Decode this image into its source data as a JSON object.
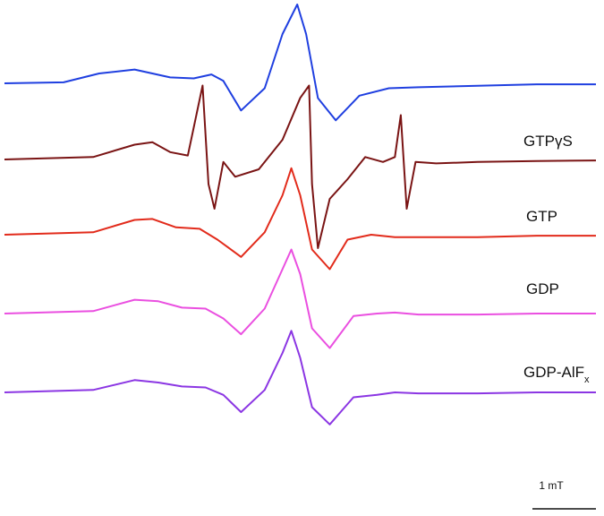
{
  "chart_data": {
    "type": "line",
    "x_range": [
      0,
      10
    ],
    "scale_bar": {
      "label": "1 mT",
      "length": 1.1
    },
    "series": [
      {
        "name": "",
        "color": "#1f3fe0",
        "points": [
          [
            0,
            0
          ],
          [
            1.0,
            0.02
          ],
          [
            1.6,
            0.2
          ],
          [
            2.2,
            0.28
          ],
          [
            2.8,
            0.12
          ],
          [
            3.2,
            0.1
          ],
          [
            3.5,
            0.18
          ],
          [
            3.7,
            0.05
          ],
          [
            4.0,
            -0.55
          ],
          [
            4.4,
            -0.1
          ],
          [
            4.7,
            1.0
          ],
          [
            4.95,
            1.6
          ],
          [
            5.1,
            1.0
          ],
          [
            5.3,
            -0.3
          ],
          [
            5.6,
            -0.75
          ],
          [
            6.0,
            -0.25
          ],
          [
            6.5,
            -0.1
          ],
          [
            7.0,
            -0.08
          ],
          [
            8.0,
            -0.05
          ],
          [
            9.0,
            -0.02
          ],
          [
            10.0,
            -0.02
          ]
        ]
      },
      {
        "name": "GTPγS",
        "color": "#7a1414",
        "points": [
          [
            0,
            0
          ],
          [
            1.5,
            0.05
          ],
          [
            2.2,
            0.3
          ],
          [
            2.5,
            0.35
          ],
          [
            2.8,
            0.15
          ],
          [
            3.1,
            0.08
          ],
          [
            3.35,
            1.5
          ],
          [
            3.45,
            -0.5
          ],
          [
            3.55,
            -1.0
          ],
          [
            3.7,
            -0.05
          ],
          [
            3.9,
            -0.35
          ],
          [
            4.3,
            -0.2
          ],
          [
            4.7,
            0.4
          ],
          [
            5.0,
            1.25
          ],
          [
            5.15,
            1.5
          ],
          [
            5.2,
            -0.5
          ],
          [
            5.3,
            -1.8
          ],
          [
            5.5,
            -0.8
          ],
          [
            5.8,
            -0.4
          ],
          [
            6.1,
            0.05
          ],
          [
            6.4,
            -0.05
          ],
          [
            6.6,
            0.05
          ],
          [
            6.7,
            0.9
          ],
          [
            6.8,
            -1.0
          ],
          [
            6.95,
            -0.05
          ],
          [
            7.3,
            -0.08
          ],
          [
            8.0,
            -0.05
          ],
          [
            9.0,
            -0.03
          ],
          [
            10.0,
            -0.02
          ]
        ]
      },
      {
        "name": "GTP",
        "color": "#e22b1b",
        "points": [
          [
            0,
            0
          ],
          [
            1.5,
            0.05
          ],
          [
            2.2,
            0.3
          ],
          [
            2.5,
            0.32
          ],
          [
            2.9,
            0.15
          ],
          [
            3.3,
            0.12
          ],
          [
            3.6,
            -0.1
          ],
          [
            4.0,
            -0.45
          ],
          [
            4.4,
            0.05
          ],
          [
            4.7,
            0.8
          ],
          [
            4.85,
            1.35
          ],
          [
            5.0,
            0.8
          ],
          [
            5.2,
            -0.3
          ],
          [
            5.5,
            -0.7
          ],
          [
            5.8,
            -0.1
          ],
          [
            6.2,
            0.0
          ],
          [
            6.6,
            -0.05
          ],
          [
            7.0,
            -0.05
          ],
          [
            8.0,
            -0.05
          ],
          [
            9.0,
            -0.02
          ],
          [
            10.0,
            -0.02
          ]
        ]
      },
      {
        "name": "GDP",
        "color": "#ea4fe0",
        "points": [
          [
            0,
            0
          ],
          [
            1.5,
            0.05
          ],
          [
            2.2,
            0.28
          ],
          [
            2.6,
            0.25
          ],
          [
            3.0,
            0.12
          ],
          [
            3.4,
            0.1
          ],
          [
            3.7,
            -0.1
          ],
          [
            4.0,
            -0.42
          ],
          [
            4.4,
            0.1
          ],
          [
            4.7,
            0.9
          ],
          [
            4.85,
            1.3
          ],
          [
            5.0,
            0.8
          ],
          [
            5.2,
            -0.3
          ],
          [
            5.5,
            -0.7
          ],
          [
            5.9,
            -0.05
          ],
          [
            6.3,
            0.0
          ],
          [
            6.6,
            0.02
          ],
          [
            7.0,
            -0.02
          ],
          [
            8.0,
            -0.02
          ],
          [
            9.0,
            0.0
          ],
          [
            10.0,
            0.0
          ]
        ]
      },
      {
        "name": "GDP-AlFx",
        "color": "#8b36e3",
        "points": [
          [
            0,
            0
          ],
          [
            1.5,
            0.05
          ],
          [
            2.2,
            0.25
          ],
          [
            2.6,
            0.2
          ],
          [
            3.0,
            0.12
          ],
          [
            3.4,
            0.1
          ],
          [
            3.7,
            -0.05
          ],
          [
            4.0,
            -0.4
          ],
          [
            4.4,
            0.05
          ],
          [
            4.7,
            0.8
          ],
          [
            4.85,
            1.25
          ],
          [
            5.0,
            0.7
          ],
          [
            5.2,
            -0.3
          ],
          [
            5.5,
            -0.65
          ],
          [
            5.9,
            -0.1
          ],
          [
            6.3,
            -0.05
          ],
          [
            6.6,
            0.0
          ],
          [
            7.0,
            -0.02
          ],
          [
            8.0,
            -0.02
          ],
          [
            9.0,
            0.0
          ],
          [
            10.0,
            0.0
          ]
        ]
      }
    ],
    "labels": [
      {
        "series_index": 1,
        "main": "GTPγS",
        "sub": ""
      },
      {
        "series_index": 2,
        "main": "GTP",
        "sub": ""
      },
      {
        "series_index": 3,
        "main": "GDP",
        "sub": ""
      },
      {
        "series_index": 4,
        "main": "GDP-AlF",
        "sub": "x"
      }
    ]
  }
}
